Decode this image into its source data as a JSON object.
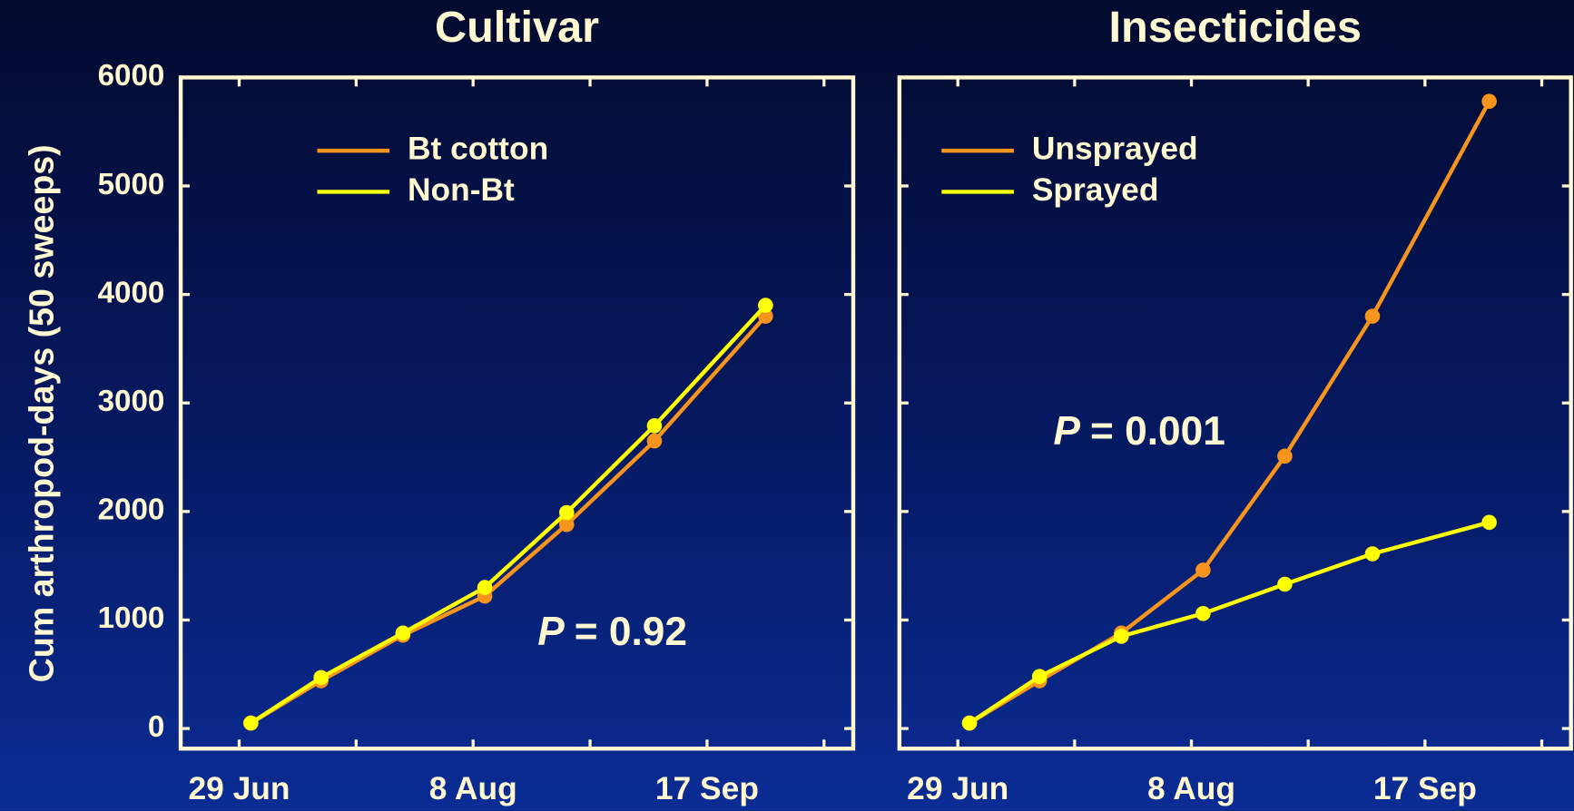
{
  "chart_data": [
    {
      "type": "line",
      "title": "Cultivar",
      "ylabel": "Cum arthropod-days (50 sweeps)",
      "x": [
        182,
        194,
        208,
        222,
        236,
        251,
        270
      ],
      "series": [
        {
          "name": "Bt cotton",
          "color": "#f7941d",
          "values": [
            50,
            440,
            860,
            1220,
            1880,
            2650,
            3800
          ]
        },
        {
          "name": "Non-Bt",
          "color": "#ffff00",
          "values": [
            50,
            470,
            880,
            1300,
            1990,
            2790,
            3900
          ]
        }
      ],
      "xlim": [
        170,
        285
      ],
      "xticks": [
        {
          "value": 180,
          "label": "29 Jun"
        },
        {
          "value": 220,
          "label": "8 Aug"
        },
        {
          "value": 260,
          "label": "17 Sep"
        }
      ],
      "xminorticks": [
        200,
        240,
        280
      ],
      "ylim": [
        -185,
        6000
      ],
      "yticks": [
        0,
        1000,
        2000,
        3000,
        4000,
        5000,
        6000
      ],
      "ytick_labels": true,
      "legend": "upper left",
      "annotation": {
        "color": "#fff8d0",
        "parts": [
          {
            "text": "P",
            "italic": true
          },
          {
            "text": "= 0.92",
            "italic": false
          }
        ]
      }
    },
    {
      "type": "line",
      "title": "Insecticides",
      "x": [
        182,
        194,
        208,
        222,
        236,
        251,
        271
      ],
      "series": [
        {
          "name": "Unsprayed",
          "color": "#f7941d",
          "values": [
            50,
            440,
            880,
            1460,
            2510,
            3800,
            5780
          ]
        },
        {
          "name": "Sprayed",
          "color": "#ffff00",
          "values": [
            50,
            480,
            850,
            1060,
            1330,
            1610,
            1900
          ]
        }
      ],
      "xlim": [
        170,
        285
      ],
      "xticks": [
        {
          "value": 180,
          "label": "29 Jun"
        },
        {
          "value": 220,
          "label": "8 Aug"
        },
        {
          "value": 260,
          "label": "17 Sep"
        }
      ],
      "xminorticks": [
        200,
        240,
        280
      ],
      "ylim": [
        -185,
        6000
      ],
      "yticks": [
        0,
        1000,
        2000,
        3000,
        4000,
        5000,
        6000
      ],
      "ytick_labels": false,
      "legend": "upper left",
      "annotation": {
        "color": "#5ff0dc",
        "parts": [
          {
            "text": "P",
            "italic": true
          },
          {
            "text": "= 0.001",
            "italic": false
          }
        ]
      }
    }
  ]
}
